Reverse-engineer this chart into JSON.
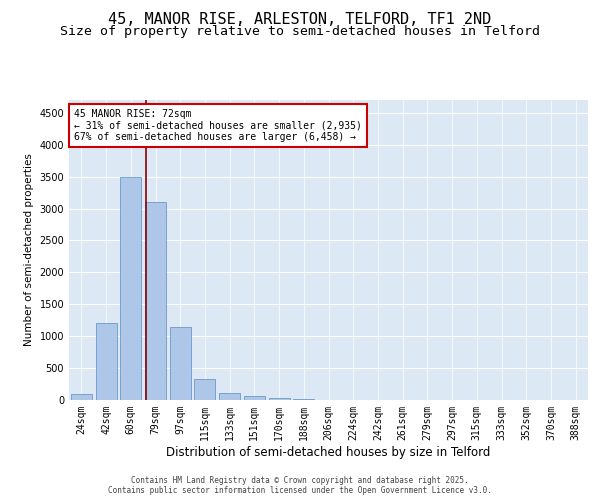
{
  "title_line1": "45, MANOR RISE, ARLESTON, TELFORD, TF1 2ND",
  "title_line2": "Size of property relative to semi-detached houses in Telford",
  "xlabel": "Distribution of semi-detached houses by size in Telford",
  "ylabel": "Number of semi-detached properties",
  "categories": [
    "24sqm",
    "42sqm",
    "60sqm",
    "79sqm",
    "97sqm",
    "115sqm",
    "133sqm",
    "151sqm",
    "170sqm",
    "188sqm",
    "206sqm",
    "224sqm",
    "242sqm",
    "261sqm",
    "279sqm",
    "297sqm",
    "315sqm",
    "333sqm",
    "352sqm",
    "370sqm",
    "388sqm"
  ],
  "values": [
    100,
    1200,
    3500,
    3100,
    1150,
    330,
    115,
    60,
    30,
    10,
    5,
    3,
    2,
    1,
    1,
    0,
    0,
    0,
    0,
    0,
    0
  ],
  "bar_color": "#aec6e8",
  "bar_edge_color": "#5a8fc2",
  "vline_color": "#8b0000",
  "annotation_text": "45 MANOR RISE: 72sqm\n← 31% of semi-detached houses are smaller (2,935)\n67% of semi-detached houses are larger (6,458) →",
  "annotation_box_color": "#ffffff",
  "annotation_box_edge": "#cc0000",
  "ylim": [
    0,
    4700
  ],
  "yticks": [
    0,
    500,
    1000,
    1500,
    2000,
    2500,
    3000,
    3500,
    4000,
    4500
  ],
  "background_color": "#dce9f5",
  "footer_text": "Contains HM Land Registry data © Crown copyright and database right 2025.\nContains public sector information licensed under the Open Government Licence v3.0.",
  "title_fontsize": 11,
  "subtitle_fontsize": 9.5,
  "xlabel_fontsize": 8.5,
  "ylabel_fontsize": 7.5,
  "tick_fontsize": 7,
  "annotation_fontsize": 7,
  "footer_fontsize": 5.5
}
